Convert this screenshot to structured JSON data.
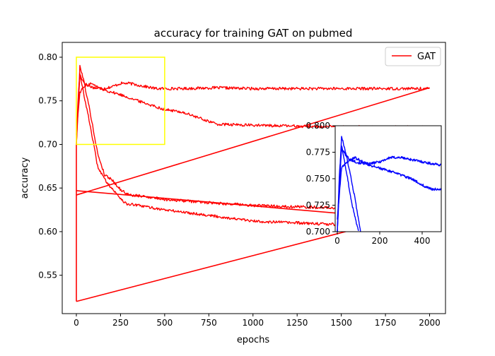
{
  "chart_data": {
    "type": "line",
    "title": "accuracy for training GAT on pubmed",
    "xlabel": "epochs",
    "ylabel": "accuracy",
    "xlim": [
      -80,
      2090
    ],
    "ylim": [
      0.506,
      0.817
    ],
    "x_ticks": [
      0,
      250,
      500,
      750,
      1000,
      1250,
      1500,
      1750,
      2000
    ],
    "y_ticks": [
      0.55,
      0.6,
      0.65,
      0.7,
      0.75,
      0.8
    ],
    "y_tick_labels": [
      "0.55",
      "0.60",
      "0.65",
      "0.70",
      "0.75",
      "0.80"
    ],
    "grid": false,
    "legend": {
      "position": "top-right",
      "entries": [
        {
          "name": "GAT",
          "color": "#ff0000"
        }
      ]
    },
    "series": [
      {
        "name": "GAT",
        "color": "#ff0000",
        "kind": "val_acc_high",
        "anchors": [
          [
            0,
            0.7
          ],
          [
            10,
            0.755
          ],
          [
            20,
            0.78
          ],
          [
            40,
            0.772
          ],
          [
            60,
            0.768
          ],
          [
            100,
            0.765
          ],
          [
            150,
            0.764
          ],
          [
            200,
            0.766
          ],
          [
            250,
            0.77
          ],
          [
            300,
            0.77
          ],
          [
            350,
            0.768
          ],
          [
            400,
            0.766
          ],
          [
            450,
            0.764
          ],
          [
            500,
            0.764
          ],
          [
            600,
            0.764
          ],
          [
            800,
            0.765
          ],
          [
            1000,
            0.764
          ],
          [
            2000,
            0.764
          ]
        ]
      },
      {
        "name": "",
        "color": "#ff0000",
        "kind": "test_acc_high",
        "anchors": [
          [
            0,
            0.712
          ],
          [
            20,
            0.76
          ],
          [
            40,
            0.765
          ],
          [
            80,
            0.77
          ],
          [
            150,
            0.763
          ],
          [
            250,
            0.757
          ],
          [
            350,
            0.75
          ],
          [
            500,
            0.74
          ],
          [
            600,
            0.737
          ],
          [
            700,
            0.73
          ],
          [
            800,
            0.723
          ],
          [
            1000,
            0.722
          ],
          [
            1500,
            0.72
          ],
          [
            2000,
            0.72
          ]
        ]
      },
      {
        "name": "",
        "color": "#ff0000",
        "kind": "train_acc_drop_1",
        "anchors": [
          [
            0,
            0.7
          ],
          [
            20,
            0.79
          ],
          [
            40,
            0.775
          ],
          [
            80,
            0.735
          ],
          [
            120,
            0.69
          ],
          [
            160,
            0.665
          ],
          [
            200,
            0.66
          ],
          [
            250,
            0.648
          ],
          [
            300,
            0.642
          ],
          [
            400,
            0.64
          ],
          [
            500,
            0.637
          ],
          [
            700,
            0.634
          ],
          [
            1000,
            0.63
          ],
          [
            1500,
            0.627
          ],
          [
            2000,
            0.627
          ]
        ]
      },
      {
        "name": "",
        "color": "#ff0000",
        "kind": "train_acc_drop_2",
        "anchors": [
          [
            0,
            0.7
          ],
          [
            20,
            0.78
          ],
          [
            40,
            0.76
          ],
          [
            80,
            0.72
          ],
          [
            120,
            0.675
          ],
          [
            160,
            0.66
          ],
          [
            220,
            0.645
          ],
          [
            280,
            0.632
          ],
          [
            350,
            0.63
          ],
          [
            500,
            0.625
          ],
          [
            700,
            0.62
          ],
          [
            1000,
            0.612
          ],
          [
            1500,
            0.608
          ],
          [
            2000,
            0.608
          ]
        ]
      },
      {
        "name": "",
        "color": "#ff0000",
        "kind": "connectors",
        "segments": [
          [
            [
              0,
              0.7
            ],
            [
              0,
              0.52
            ]
          ],
          [
            [
              0,
              0.52
            ],
            [
              2000,
              0.625
            ]
          ],
          [
            [
              0,
              0.647
            ],
            [
              2000,
              0.612
            ]
          ],
          [
            [
              0,
              0.642
            ],
            [
              2000,
              0.765
            ]
          ]
        ]
      }
    ],
    "zoom_box": {
      "x": [
        0,
        500
      ],
      "y": [
        0.7,
        0.8
      ],
      "color": "#ffff00"
    },
    "inset": {
      "xlim": [
        -10,
        490
      ],
      "ylim": [
        0.7,
        0.8
      ],
      "x_ticks": [
        0,
        200,
        400
      ],
      "y_ticks": [
        0.7,
        0.725,
        0.75,
        0.775,
        0.8
      ],
      "y_tick_labels": [
        "0.700",
        "0.725",
        "0.750",
        "0.775",
        "0.800"
      ],
      "series": [
        {
          "name": "",
          "color": "#0000ff",
          "anchors": [
            [
              0,
              0.7
            ],
            [
              10,
              0.755
            ],
            [
              20,
              0.78
            ],
            [
              40,
              0.772
            ],
            [
              60,
              0.768
            ],
            [
              100,
              0.765
            ],
            [
              150,
              0.764
            ],
            [
              200,
              0.766
            ],
            [
              250,
              0.77
            ],
            [
              300,
              0.77
            ],
            [
              350,
              0.768
            ],
            [
              400,
              0.766
            ],
            [
              450,
              0.764
            ],
            [
              490,
              0.763
            ]
          ]
        },
        {
          "name": "",
          "color": "#0000ff",
          "anchors": [
            [
              0,
              0.712
            ],
            [
              20,
              0.76
            ],
            [
              40,
              0.765
            ],
            [
              80,
              0.77
            ],
            [
              150,
              0.763
            ],
            [
              250,
              0.757
            ],
            [
              350,
              0.75
            ],
            [
              420,
              0.742
            ],
            [
              450,
              0.74
            ],
            [
              490,
              0.74
            ]
          ]
        },
        {
          "name": "",
          "color": "#0000ff",
          "anchors": [
            [
              0,
              0.7
            ],
            [
              10,
              0.75
            ],
            [
              20,
              0.79
            ],
            [
              40,
              0.775
            ],
            [
              80,
              0.735
            ],
            [
              110,
              0.7
            ]
          ]
        },
        {
          "name": "",
          "color": "#0000ff",
          "anchors": [
            [
              0,
              0.7
            ],
            [
              20,
              0.78
            ],
            [
              40,
              0.76
            ],
            [
              70,
              0.725
            ],
            [
              100,
              0.7
            ]
          ]
        }
      ]
    }
  }
}
